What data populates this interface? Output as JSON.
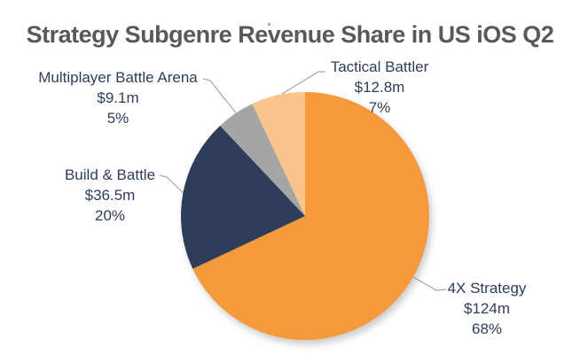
{
  "colors": {
    "title": "#58595B",
    "label": "#2E3D59",
    "leader_line": "#A6A6A6",
    "background": "#FFFFFF"
  },
  "chart_data": {
    "type": "pie",
    "title": "Strategy Subgenre Revenue Share in US iOS Q2",
    "legend": "none",
    "data_labels": "outside-with-leader-lines",
    "start_angle_deg": 0,
    "direction": "clockwise",
    "slices": [
      {
        "label": "4X Strategy",
        "revenue": "$124m",
        "share": "68%",
        "value_m": 124,
        "pct": 68,
        "color": "#F5993D"
      },
      {
        "label": "Build & Battle",
        "revenue": "$36.5m",
        "share": "20%",
        "value_m": 36.5,
        "pct": 20,
        "color": "#2E3D59"
      },
      {
        "label": "Multiplayer Battle Arena",
        "revenue": "$9.1m",
        "share": "5%",
        "value_m": 9.1,
        "pct": 5,
        "color": "#A5A5A5"
      },
      {
        "label": "Tactical Battler",
        "revenue": "$12.8m",
        "share": "7%",
        "value_m": 12.8,
        "pct": 7,
        "color": "#F8C48C"
      }
    ]
  }
}
